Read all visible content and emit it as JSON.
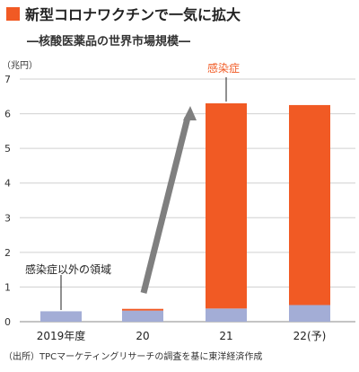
{
  "chart_data": {
    "type": "bar",
    "title": "新型コロナワクチンで一気に拡大",
    "subtitle": "―核酸医薬品の世界市場規模―",
    "unit_label": "（兆円）",
    "ylim": [
      0,
      7
    ],
    "yticks": [
      0,
      1,
      2,
      3,
      4,
      5,
      6,
      7
    ],
    "grid": true,
    "categories": [
      "2019年度",
      "20",
      "21",
      "22(予)"
    ],
    "series": [
      {
        "name": "感染症以外の領域",
        "color": "#a3add6",
        "values": [
          0.3,
          0.32,
          0.38,
          0.48
        ]
      },
      {
        "name": "感染症",
        "color": "#f15a24",
        "values": [
          0.0,
          0.05,
          5.92,
          5.77
        ]
      }
    ],
    "annotations": {
      "red_label": "感染症",
      "blue_label": "感染症以外の領域"
    },
    "source": "（出所）TPCマーケティングリサーチの調査を基に東洋経済作成"
  },
  "colors": {
    "accent": "#f15a24",
    "secondary": "#a3add6",
    "arrow": "#7f7f7f",
    "grid": "#d0d0d0",
    "text": "#222222"
  }
}
